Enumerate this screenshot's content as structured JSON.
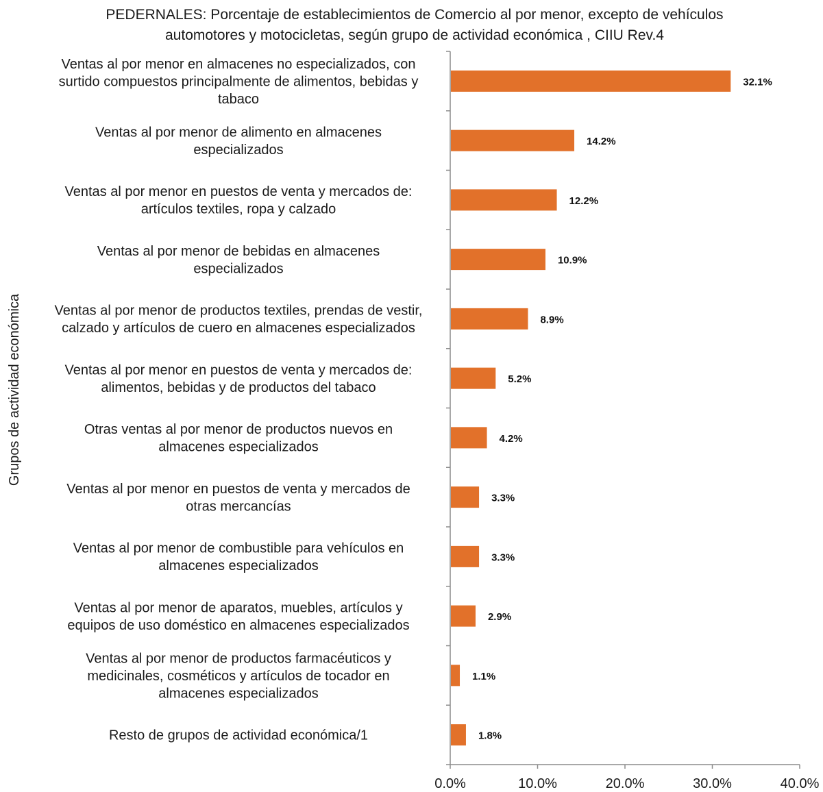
{
  "chart_data": {
    "type": "bar",
    "orientation": "horizontal",
    "title": [
      "PEDERNALES: Porcentaje de establecimientos de Comercio al por menor, excepto de vehículos",
      "automotores y motocicletas, según grupo de actividad económica , CIIU Rev.4"
    ],
    "ylabel": "Grupos de actividad económica",
    "xlabel": "",
    "xlim": [
      0,
      40
    ],
    "x_ticks": [
      0,
      10,
      20,
      30,
      40
    ],
    "x_tick_labels": [
      "0.0%",
      "10.0%",
      "20.0%",
      "30.0%",
      "40.0%"
    ],
    "categories": [
      [
        "Ventas al por menor en almacenes no especializados, con",
        "surtido compuestos principalmente de alimentos, bebidas y",
        "tabaco"
      ],
      [
        "Ventas al por menor de alimento en almacenes",
        "especializados"
      ],
      [
        "Ventas al por menor en puestos de venta y mercados de:",
        "artículos textiles, ropa y calzado"
      ],
      [
        "Ventas al por menor de bebidas en almacenes",
        "especializados"
      ],
      [
        "Ventas al por menor de productos textiles, prendas de vestir,",
        "calzado y artículos de cuero en almacenes especializados"
      ],
      [
        "Ventas al por menor en puestos de venta y mercados de:",
        "alimentos, bebidas y de productos del tabaco"
      ],
      [
        "Otras ventas al por menor de productos nuevos en",
        "almacenes especializados"
      ],
      [
        "Ventas al por menor en puestos de venta y mercados de",
        "otras mercancías"
      ],
      [
        "Ventas al por menor de combustible para vehículos en",
        "almacenes especializados"
      ],
      [
        "Ventas al por menor de aparatos, muebles, artículos y",
        "equipos de uso doméstico en almacenes especializados"
      ],
      [
        "Ventas al por menor de productos farmacéuticos y",
        "medicinales, cosméticos y artículos de tocador en",
        "almacenes especializados"
      ],
      [
        "Resto de grupos de actividad económica/1"
      ]
    ],
    "values": [
      32.1,
      14.2,
      12.2,
      10.9,
      8.9,
      5.2,
      4.2,
      3.3,
      3.3,
      2.9,
      1.1,
      1.8
    ],
    "value_labels": [
      "32.1%",
      "14.2%",
      "12.2%",
      "10.9%",
      "8.9%",
      "5.2%",
      "4.2%",
      "3.3%",
      "3.3%",
      "2.9%",
      "1.1%",
      "1.8%"
    ],
    "bar_color": "#e2712a",
    "axis_color": "#8c8c8c",
    "grid": false,
    "legend": "none"
  }
}
